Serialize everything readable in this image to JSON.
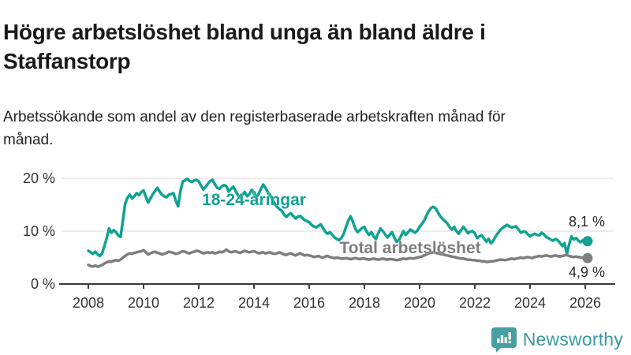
{
  "header": {
    "title": "Högre arbetslöshet bland unga än bland äldre i Staffanstorp",
    "subtitle": "Arbetssökande som andel av den registerbaserade arbetskraften månad för månad."
  },
  "chart_data": {
    "type": "line",
    "title": "Högre arbetslöshet bland unga än bland äldre i Staffanstorp",
    "subtitle": "Arbetssökande som andel av den registerbaserade arbetskraften månad för månad.",
    "unit": "%",
    "x_start_year": 2008,
    "x_step_months": 1,
    "x_tick_labels": [
      "2008",
      "2010",
      "2012",
      "2014",
      "2016",
      "2018",
      "2020",
      "2022",
      "2024",
      "2026"
    ],
    "y_ticks": [
      {
        "value": 0,
        "label": "0 %"
      },
      {
        "value": 10,
        "label": "10 %"
      },
      {
        "value": 20,
        "label": "20 %"
      }
    ],
    "ylim": [
      0,
      21.5
    ],
    "grid": "horizontal",
    "legend_position": "inline-labels",
    "colors": {
      "youth": "#10a292",
      "total": "#7e7e7e",
      "grid": "#e0e0e0",
      "axis": "#3a3a3a",
      "tick_text": "#333333",
      "end_label_text": "#2b2b2b"
    },
    "series": [
      {
        "name": "18-24-åringar",
        "color": "#10a292",
        "end_label": "8,1 %",
        "end_value": 8.1,
        "values": [
          6.3,
          6.0,
          5.7,
          6.1,
          5.6,
          5.3,
          5.8,
          7.2,
          8.7,
          10.5,
          9.7,
          10.2,
          9.8,
          9.2,
          8.9,
          12.0,
          15.2,
          16.3,
          16.9,
          16.2,
          16.6,
          17.2,
          16.8,
          17.4,
          17.7,
          16.5,
          15.4,
          16.2,
          17.0,
          17.6,
          18.2,
          17.5,
          16.9,
          16.6,
          16.4,
          16.9,
          17.0,
          17.2,
          15.8,
          14.7,
          17.5,
          19.4,
          19.6,
          19.9,
          19.5,
          19.3,
          19.6,
          19.7,
          19.4,
          18.6,
          17.9,
          18.4,
          19.0,
          19.5,
          19.7,
          18.9,
          18.2,
          18.0,
          18.5,
          18.7,
          18.5,
          17.5,
          18.0,
          18.4,
          17.6,
          16.8,
          16.3,
          16.9,
          17.4,
          16.6,
          17.0,
          17.8,
          17.2,
          16.4,
          17.0,
          18.0,
          18.8,
          18.2,
          17.4,
          16.8,
          16.0,
          15.2,
          14.6,
          14.2,
          13.9,
          13.2,
          12.7,
          13.1,
          13.4,
          12.9,
          12.4,
          12.7,
          12.9,
          12.5,
          12.1,
          11.9,
          11.7,
          11.2,
          10.9,
          10.7,
          11.0,
          11.3,
          10.6,
          9.9,
          9.5,
          9.8,
          9.3,
          8.8,
          8.5,
          8.3,
          8.7,
          9.5,
          10.8,
          12.0,
          12.8,
          11.8,
          10.5,
          9.8,
          10.2,
          10.6,
          10.8,
          9.9,
          9.3,
          9.8,
          9.0,
          8.5,
          9.6,
          10.5,
          10.0,
          9.4,
          8.8,
          9.3,
          9.8,
          8.8,
          8.0,
          8.3,
          9.2,
          10.0,
          9.3,
          9.8,
          10.3,
          10.0,
          9.7,
          10.1,
          10.8,
          11.4,
          12.0,
          13.0,
          13.8,
          14.4,
          14.6,
          14.3,
          13.5,
          12.8,
          12.3,
          11.9,
          11.5,
          10.8,
          10.3,
          10.8,
          10.0,
          9.5,
          10.2,
          10.8,
          10.3,
          9.6,
          9.9,
          10.0,
          9.6,
          8.7,
          9.0,
          9.2,
          8.6,
          8.0,
          8.5,
          7.7,
          8.2,
          9.0,
          9.6,
          10.2,
          10.6,
          10.9,
          11.2,
          10.9,
          10.7,
          10.8,
          10.9,
          10.3,
          9.7,
          9.9,
          9.9,
          9.4,
          9.0,
          9.3,
          9.5,
          9.3,
          9.2,
          9.7,
          9.4,
          8.9,
          8.7,
          8.4,
          8.2,
          8.5,
          8.3,
          7.8,
          7.2,
          7.7,
          5.7,
          7.5,
          9.0,
          8.4,
          8.7,
          8.2,
          7.9,
          8.3,
          8.0,
          8.1
        ]
      },
      {
        "name": "Total arbetslöshet",
        "color": "#7e7e7e",
        "end_label": "4,9 %",
        "end_value": 4.9,
        "values": [
          3.6,
          3.4,
          3.3,
          3.5,
          3.3,
          3.4,
          3.6,
          3.9,
          4.1,
          4.3,
          4.2,
          4.4,
          4.5,
          4.4,
          4.6,
          5.0,
          5.3,
          5.6,
          5.8,
          5.7,
          5.9,
          6.0,
          6.1,
          6.2,
          6.4,
          6.0,
          5.6,
          5.8,
          6.0,
          6.1,
          5.9,
          5.8,
          5.6,
          5.7,
          5.9,
          6.1,
          6.0,
          5.9,
          5.7,
          5.8,
          6.0,
          6.2,
          6.1,
          5.9,
          5.8,
          6.0,
          6.1,
          6.3,
          6.2,
          6.0,
          5.8,
          5.9,
          6.0,
          5.9,
          6.0,
          5.8,
          5.9,
          6.1,
          6.0,
          6.2,
          6.5,
          6.2,
          6.0,
          6.1,
          6.2,
          6.0,
          5.9,
          6.1,
          6.3,
          6.1,
          6.0,
          6.1,
          6.2,
          6.0,
          5.8,
          5.9,
          6.0,
          5.8,
          5.9,
          6.0,
          5.8,
          5.7,
          5.8,
          6.0,
          5.8,
          5.6,
          5.5,
          5.7,
          5.8,
          5.6,
          5.4,
          5.6,
          5.8,
          5.6,
          5.4,
          5.5,
          5.4,
          5.3,
          5.1,
          5.2,
          5.3,
          5.1,
          5.0,
          5.2,
          5.3,
          5.1,
          5.0,
          4.9,
          5.0,
          4.9,
          4.8,
          4.8,
          4.9,
          4.8,
          4.7,
          4.8,
          4.9,
          4.8,
          4.7,
          4.8,
          4.8,
          4.7,
          4.6,
          4.7,
          4.8,
          4.7,
          4.6,
          4.7,
          4.8,
          4.7,
          4.6,
          4.7,
          4.7,
          4.6,
          4.5,
          4.6,
          4.7,
          4.8,
          4.7,
          4.8,
          4.9,
          4.8,
          4.9,
          5.0,
          5.1,
          5.2,
          5.4,
          5.6,
          5.8,
          5.9,
          6.0,
          5.9,
          5.8,
          5.7,
          5.6,
          5.5,
          5.4,
          5.3,
          5.2,
          5.1,
          5.0,
          4.9,
          4.8,
          4.8,
          4.7,
          4.6,
          4.6,
          4.5,
          4.5,
          4.4,
          4.4,
          4.3,
          4.3,
          4.2,
          4.2,
          4.3,
          4.3,
          4.4,
          4.5,
          4.6,
          4.6,
          4.5,
          4.6,
          4.7,
          4.8,
          4.7,
          4.8,
          4.9,
          5.0,
          4.9,
          5.0,
          5.1,
          5.0,
          4.9,
          5.1,
          5.2,
          5.3,
          5.2,
          5.3,
          5.4,
          5.3,
          5.2,
          5.3,
          5.4,
          5.3,
          5.2,
          5.3,
          5.4,
          5.5,
          5.3,
          5.2,
          5.1,
          5.2,
          5.1,
          5.0,
          5.0,
          4.9,
          4.9
        ]
      }
    ]
  },
  "footer": {
    "brand": "Newsworthy",
    "logo_icon": "newsworthy-chart-bubble-icon",
    "logo_color": "#46a0a0"
  }
}
